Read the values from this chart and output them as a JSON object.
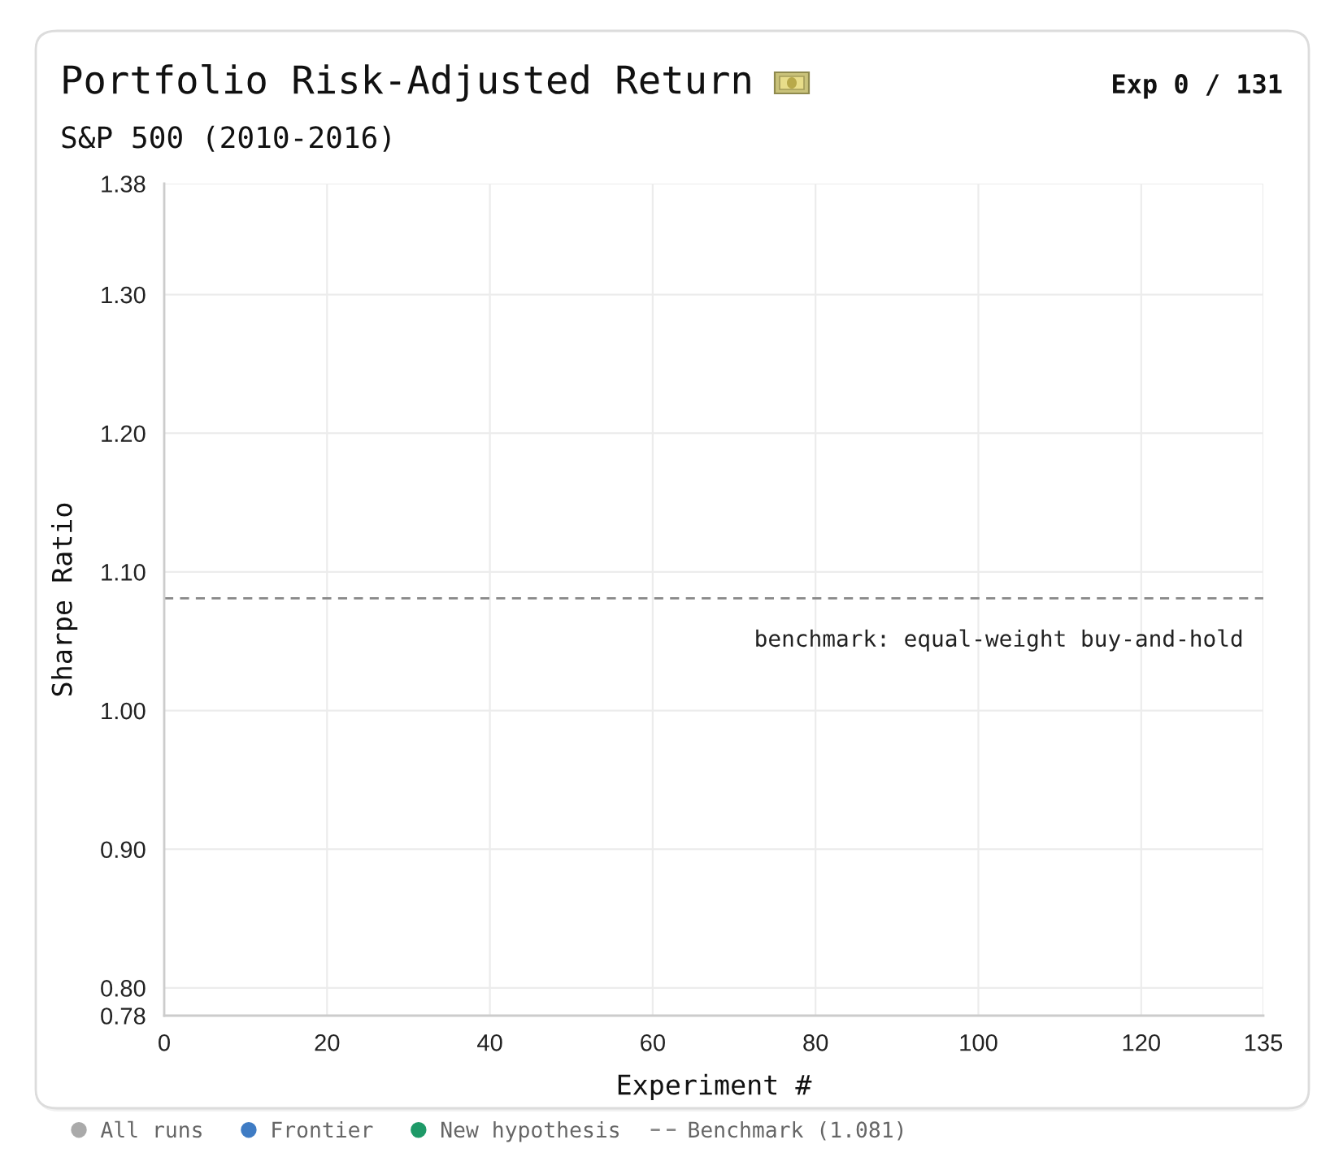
{
  "chart_data": {
    "type": "scatter",
    "title": "Portfolio Risk-Adjusted Return",
    "subtitle": "S&P 500 (2010-2016)",
    "xlabel": "Experiment #",
    "ylabel": "Sharpe Ratio",
    "annotations": [
      "Exp 0 / 131",
      "benchmark: equal-weight buy-and-hold"
    ],
    "series": [
      {
        "name": "All runs",
        "color": "#aaaaaa"
      },
      {
        "name": "Frontier",
        "color": "#3f7cc4"
      },
      {
        "name": "New hypothesis",
        "color": "#1e9a68"
      },
      {
        "name": "Benchmark (1.081)",
        "type": "line",
        "color": "#888888",
        "line_style": "dashed",
        "marker": "none",
        "x": [
          0,
          135
        ],
        "values": [
          1.081,
          1.081
        ]
      }
    ],
    "xlim": [
      0,
      135
    ],
    "xticks": [
      0,
      20,
      40,
      60,
      80,
      100,
      120,
      135
    ],
    "ylim": [
      0.78,
      1.38
    ],
    "yticks": [
      {
        "value": 0.78,
        "label": "0.78"
      },
      {
        "value": 0.8,
        "label": "0.80"
      },
      {
        "value": 0.9,
        "label": "0.90"
      },
      {
        "value": 1.0,
        "label": "1.00"
      },
      {
        "value": 1.1,
        "label": "1.10"
      },
      {
        "value": 1.2,
        "label": "1.20"
      },
      {
        "value": 1.3,
        "label": "1.30"
      },
      {
        "value": 1.38,
        "label": "1.38"
      }
    ],
    "grid": true,
    "legend": "bottom",
    "marker": "circle"
  }
}
